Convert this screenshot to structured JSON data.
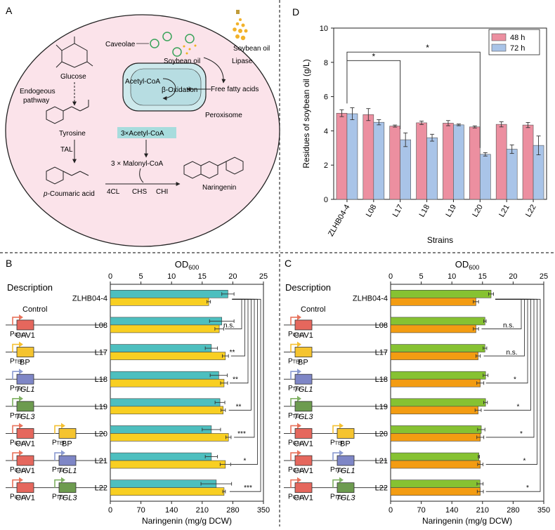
{
  "panels": {
    "a": "A",
    "b": "B",
    "c": "C",
    "d": "D"
  },
  "pathway": {
    "caveolae": "Caveolae",
    "soybean_oil_top": "Soybean oil",
    "soybean_oil_right": "Soybean oil",
    "lipase": "Lipase",
    "acetyl_coa": "Acetyl-CoA",
    "beta_oxidation": "β-Oxidation",
    "free_fatty_acids": "Free fatty acids",
    "peroxisome": "Peroxisome",
    "glucose": "Glucose",
    "endogenous_1": "Endogeous",
    "endogenous_2": "pathway",
    "tyrosine": "Tyrosine",
    "tal": "TAL",
    "acetyl_coa_box": "3×Acetyl-CoA",
    "malonyl_coa": "3 × Malonyl-CoA",
    "p_coumaric_prefix": "p",
    "p_coumaric_rest": "-Coumaric acid",
    "enzymes": [
      "4CL",
      "CHS",
      "CHI"
    ],
    "naringenin": "Naringenin"
  },
  "constructs": {
    "description": "Description",
    "control": "Control",
    "p_gal7": "P",
    "p_gal7_sub": "GAL7",
    "p_tef": "P",
    "p_tef_sub": "TEF",
    "cav1": "CAV1",
    "bp": "BP",
    "tgl1": "TGL1",
    "tgl3": "TGL3"
  },
  "colors": {
    "cell": "#fbe3ea",
    "peroxisome": "#cde9ec",
    "cav1_box": "#e5675d",
    "bp_box": "#f5c42f",
    "tgl1_box": "#7e86c6",
    "tgl3_box": "#6d9b4f",
    "arrow_cav1": "#e8735c",
    "arrow_bp": "#f5c030",
    "arrow_tgl1": "#8a9ad0",
    "arrow_tgl3": "#7fb062",
    "b_od": "#4dbfbf",
    "b_nar": "#f8cf22",
    "c_od": "#86c232",
    "c_nar": "#f39c12",
    "d_48": "#ec8fa0",
    "d_72": "#a9c4e8"
  },
  "chart_data": [
    {
      "id": "B",
      "type": "bar",
      "orientation": "horizontal",
      "categories": [
        "ZLHB04-4",
        "L08",
        "L17",
        "L18",
        "L19",
        "L20",
        "L21",
        "L22"
      ],
      "x_top_label": "OD",
      "x_top_label_sub": "600",
      "x_top_ticks": [
        "0",
        "5",
        "10",
        "15",
        "20",
        "25"
      ],
      "x_top_lim": [
        0,
        25
      ],
      "x_bottom_label": "Naringenin (mg/g DCW)",
      "x_bottom_ticks": [
        "0",
        "70",
        "140",
        "210",
        "280",
        "350"
      ],
      "x_bottom_lim": [
        0,
        350
      ],
      "series": [
        {
          "axis": "top",
          "values": [
            19.2,
            18.2,
            16.5,
            17.7,
            17.9,
            16.5,
            16.5,
            17.3
          ],
          "errors": [
            1.0,
            2.0,
            1.0,
            1.4,
            0.8,
            1.5,
            1.0,
            2.5
          ]
        },
        {
          "axis": "bottom",
          "values": [
            225,
            249,
            263,
            260,
            258,
            270,
            263,
            260
          ],
          "errors": [
            4,
            10,
            7,
            8,
            5,
            6,
            12,
            3
          ]
        }
      ],
      "significance": [
        "n.s.",
        "**",
        "**",
        "**",
        "***",
        "*",
        "***"
      ]
    },
    {
      "id": "C",
      "type": "bar",
      "orientation": "horizontal",
      "categories": [
        "ZLHB04-4",
        "L08",
        "L17",
        "L18",
        "L19",
        "L20",
        "L21",
        "L22"
      ],
      "x_top_label": "OD",
      "x_top_label_sub": "600",
      "x_top_ticks": [
        "0",
        "5",
        "10",
        "15",
        "20",
        "25"
      ],
      "x_top_lim": [
        0,
        25
      ],
      "x_bottom_label": "Naringenin (mg/g DCW)",
      "x_bottom_ticks": [
        "0",
        "70",
        "140",
        "210",
        "280",
        "350"
      ],
      "x_bottom_lim": [
        0,
        350
      ],
      "series": [
        {
          "axis": "top",
          "values": [
            16.4,
            15.4,
            15.4,
            15.5,
            15.5,
            14.8,
            14.4,
            14.6
          ],
          "errors": [
            0.4,
            0.2,
            0.3,
            0.4,
            0.3,
            0.6,
            0.1,
            0.5
          ]
        },
        {
          "axis": "bottom",
          "values": [
            195,
            195,
            200,
            205,
            200,
            205,
            205,
            205
          ],
          "errors": [
            6,
            6,
            5,
            8,
            7,
            8,
            6,
            7
          ]
        }
      ],
      "significance": [
        "n.s.",
        "n.s.",
        "*",
        "*",
        "*",
        "*",
        "*"
      ]
    },
    {
      "id": "D",
      "type": "bar",
      "categories": [
        "ZLHB04-4",
        "L08",
        "L17",
        "L18",
        "L19",
        "L20",
        "L21",
        "L22"
      ],
      "ylabel": "Residues of soybean oil (g/L)",
      "xlabel": "Strains",
      "ylim": [
        0,
        10
      ],
      "y_ticks": [
        "0",
        "2",
        "4",
        "6",
        "8",
        "10"
      ],
      "legend": "top-right",
      "series": [
        {
          "name": "48 h",
          "values": [
            5.03,
            4.95,
            4.28,
            4.47,
            4.45,
            4.23,
            4.38,
            4.34
          ],
          "errors": [
            0.2,
            0.35,
            0.06,
            0.1,
            0.15,
            0.06,
            0.15,
            0.15
          ]
        },
        {
          "name": "72 h",
          "values": [
            5.0,
            4.5,
            3.48,
            3.6,
            4.35,
            2.63,
            2.93,
            3.15
          ],
          "errors": [
            0.35,
            0.15,
            0.4,
            0.2,
            0.05,
            0.1,
            0.25,
            0.55
          ]
        }
      ],
      "significance": [
        "*",
        "*"
      ]
    }
  ]
}
